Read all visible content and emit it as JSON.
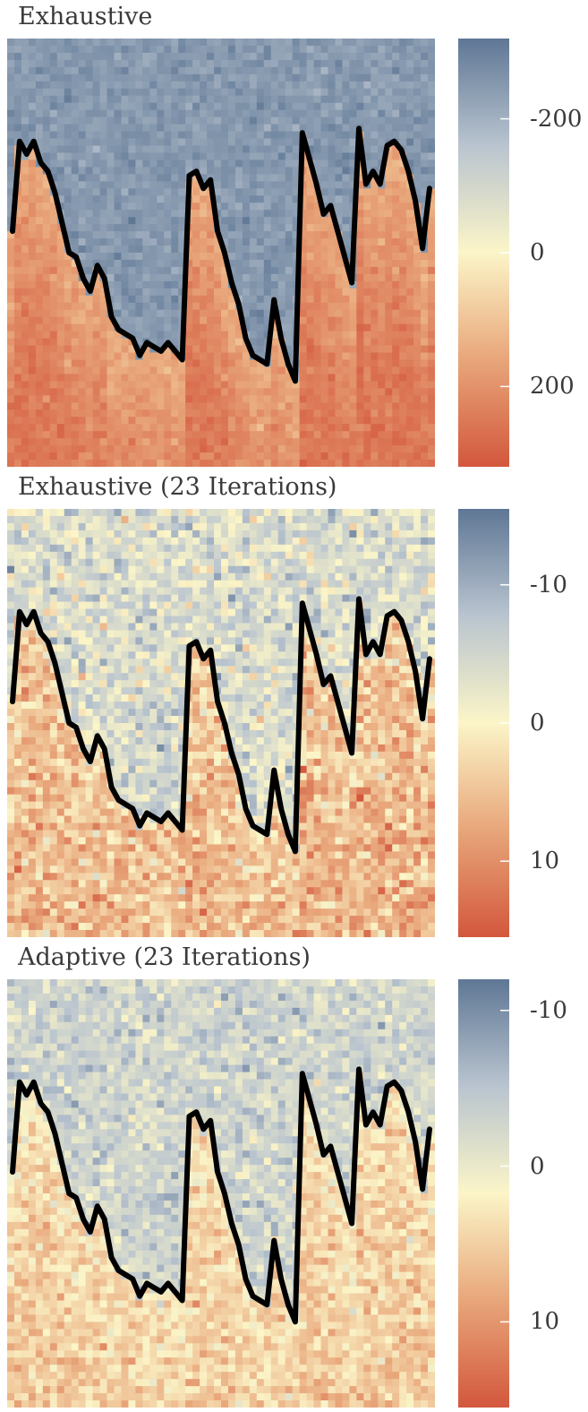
{
  "chart_data": [
    {
      "type": "heatmap",
      "title": "Exhaustive",
      "colormap": [
        "#d3573d",
        "#e8a67a",
        "#fbf5c8",
        "#b9c4cf",
        "#5f7795"
      ],
      "colorbar": {
        "range": [
          320,
          -320
        ],
        "ticks": [
          -200,
          0,
          200
        ],
        "tick_labels": [
          "-200",
          "0",
          "200"
        ]
      },
      "value_above_boundary": -250,
      "value_below_boundary": 200,
      "noise": 20,
      "boundary": {
        "x": [
          0,
          1,
          2,
          3,
          4,
          5,
          6,
          7,
          8,
          9,
          10,
          11,
          12,
          13,
          14,
          15,
          16,
          17,
          18,
          19,
          20,
          21,
          22,
          23,
          24,
          25,
          26,
          27,
          28,
          29,
          30,
          31,
          32,
          33,
          34,
          35,
          36,
          37,
          38,
          39,
          40,
          41,
          42,
          43,
          44,
          45,
          46,
          47,
          48,
          49,
          50,
          51,
          52,
          53,
          54,
          55,
          56,
          57,
          58,
          59
        ],
        "y": [
          0.45,
          0.24,
          0.27,
          0.24,
          0.29,
          0.31,
          0.36,
          0.43,
          0.5,
          0.51,
          0.56,
          0.59,
          0.53,
          0.56,
          0.65,
          0.68,
          0.69,
          0.7,
          0.74,
          0.71,
          0.72,
          0.73,
          0.71,
          0.73,
          0.75,
          0.32,
          0.31,
          0.35,
          0.33,
          0.45,
          0.5,
          0.57,
          0.62,
          0.7,
          0.74,
          0.75,
          0.76,
          0.61,
          0.7,
          0.76,
          0.8,
          0.22,
          0.28,
          0.34,
          0.41,
          0.39,
          0.45,
          0.51,
          0.57,
          0.21,
          0.34,
          0.31,
          0.34,
          0.25,
          0.24,
          0.26,
          0.31,
          0.38,
          0.49,
          0.35
        ]
      }
    },
    {
      "type": "heatmap",
      "title": "Exhaustive (23 Iterations)",
      "colormap": [
        "#d3573d",
        "#e8a67a",
        "#fbf5c8",
        "#b9c4cf",
        "#5f7795"
      ],
      "colorbar": {
        "range": [
          15.5,
          -15.5
        ],
        "ticks": [
          -10,
          0,
          10
        ],
        "tick_labels": [
          "-10",
          "0",
          "10"
        ]
      },
      "value_above_boundary": -4,
      "value_below_boundary": 5,
      "noise": 3,
      "boundary": {
        "x": [
          0,
          1,
          2,
          3,
          4,
          5,
          6,
          7,
          8,
          9,
          10,
          11,
          12,
          13,
          14,
          15,
          16,
          17,
          18,
          19,
          20,
          21,
          22,
          23,
          24,
          25,
          26,
          27,
          28,
          29,
          30,
          31,
          32,
          33,
          34,
          35,
          36,
          37,
          38,
          39,
          40,
          41,
          42,
          43,
          44,
          45,
          46,
          47,
          48,
          49,
          50,
          51,
          52,
          53,
          54,
          55,
          56,
          57,
          58,
          59
        ],
        "y": [
          0.45,
          0.24,
          0.27,
          0.24,
          0.29,
          0.31,
          0.36,
          0.43,
          0.5,
          0.51,
          0.56,
          0.59,
          0.53,
          0.56,
          0.65,
          0.68,
          0.69,
          0.7,
          0.74,
          0.71,
          0.72,
          0.73,
          0.71,
          0.73,
          0.75,
          0.32,
          0.31,
          0.35,
          0.33,
          0.45,
          0.5,
          0.57,
          0.62,
          0.7,
          0.74,
          0.75,
          0.76,
          0.61,
          0.7,
          0.76,
          0.8,
          0.22,
          0.28,
          0.34,
          0.41,
          0.39,
          0.45,
          0.51,
          0.57,
          0.21,
          0.34,
          0.31,
          0.34,
          0.25,
          0.24,
          0.26,
          0.31,
          0.38,
          0.49,
          0.35
        ]
      }
    },
    {
      "type": "heatmap",
      "title": "Adaptive (23 Iterations)",
      "colormap": [
        "#d3573d",
        "#e8a67a",
        "#fbf5c8",
        "#b9c4cf",
        "#5f7795"
      ],
      "colorbar": {
        "range": [
          15.5,
          -12
        ],
        "ticks": [
          -10,
          0,
          10
        ],
        "tick_labels": [
          "-10",
          "0",
          "10"
        ]
      },
      "value_above_boundary": -3,
      "value_below_boundary": 4.5,
      "noise": 2,
      "boundary": {
        "x": [
          0,
          1,
          2,
          3,
          4,
          5,
          6,
          7,
          8,
          9,
          10,
          11,
          12,
          13,
          14,
          15,
          16,
          17,
          18,
          19,
          20,
          21,
          22,
          23,
          24,
          25,
          26,
          27,
          28,
          29,
          30,
          31,
          32,
          33,
          34,
          35,
          36,
          37,
          38,
          39,
          40,
          41,
          42,
          43,
          44,
          45,
          46,
          47,
          48,
          49,
          50,
          51,
          52,
          53,
          54,
          55,
          56,
          57,
          58,
          59
        ],
        "y": [
          0.45,
          0.24,
          0.27,
          0.24,
          0.29,
          0.31,
          0.36,
          0.43,
          0.5,
          0.51,
          0.56,
          0.59,
          0.53,
          0.56,
          0.65,
          0.68,
          0.69,
          0.7,
          0.74,
          0.71,
          0.72,
          0.73,
          0.71,
          0.73,
          0.75,
          0.32,
          0.31,
          0.35,
          0.33,
          0.45,
          0.5,
          0.57,
          0.62,
          0.7,
          0.74,
          0.75,
          0.76,
          0.61,
          0.7,
          0.76,
          0.8,
          0.22,
          0.28,
          0.34,
          0.41,
          0.39,
          0.45,
          0.51,
          0.57,
          0.21,
          0.34,
          0.31,
          0.34,
          0.25,
          0.24,
          0.26,
          0.31,
          0.38,
          0.49,
          0.35
        ]
      }
    }
  ]
}
